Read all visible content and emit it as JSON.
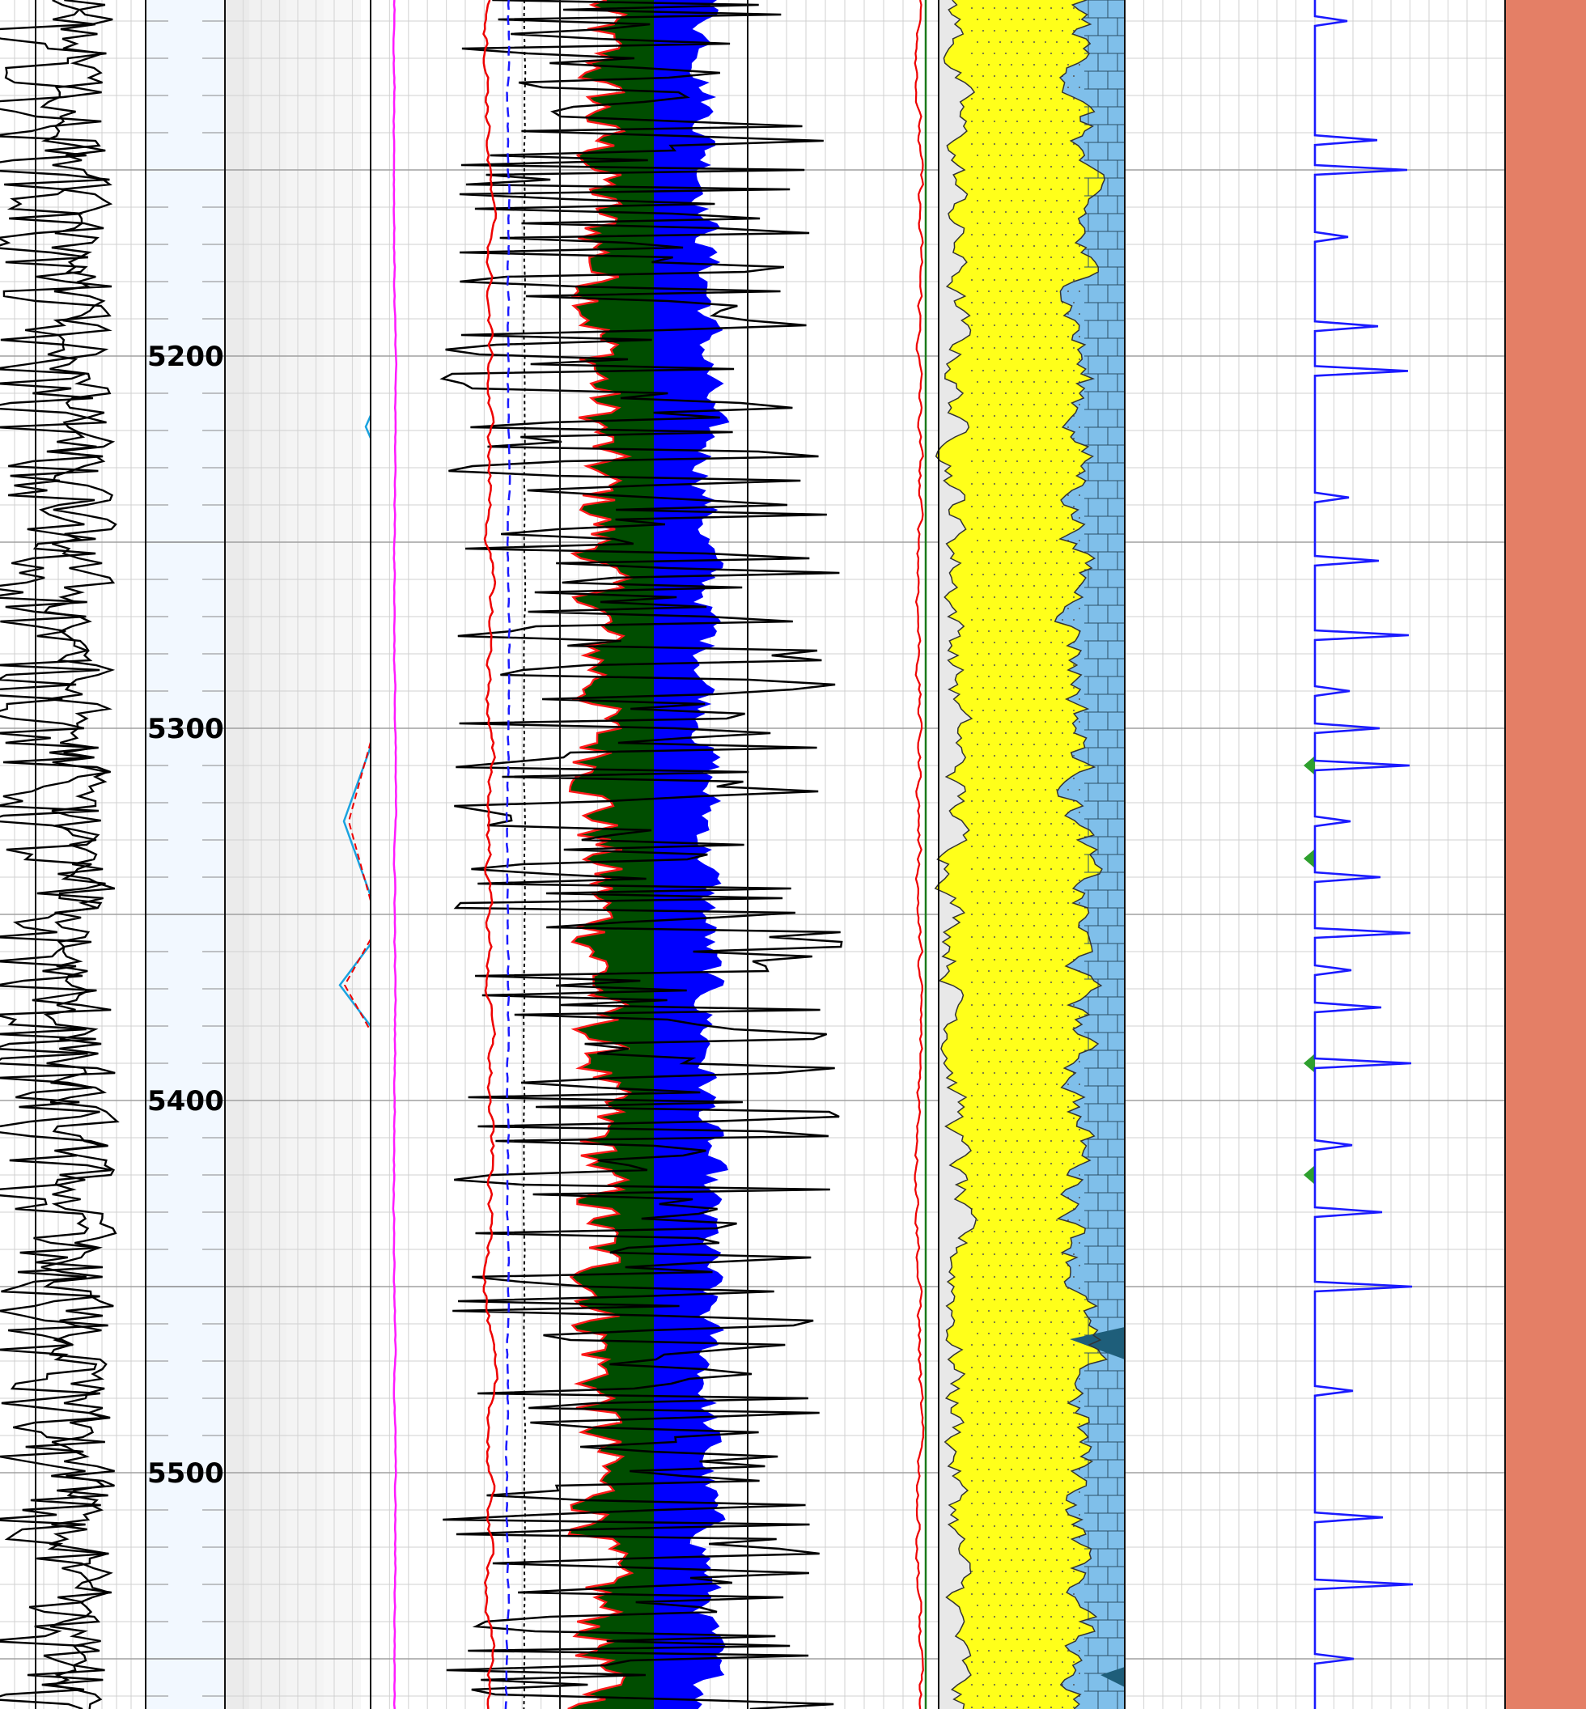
{
  "chart_data": {
    "type": "line",
    "depth_axis": {
      "range": [
        5100,
        5560
      ],
      "tick_labels": [
        "5200",
        "5300",
        "5400",
        "5500"
      ]
    },
    "tracks": [
      {
        "id": "gamma",
        "curves": [
          "black",
          "black"
        ]
      },
      {
        "id": "depth"
      },
      {
        "id": "shading",
        "curves": [
          "magenta",
          "red-dashed",
          "cyan"
        ]
      },
      {
        "id": "resistivity",
        "curves": [
          "red",
          "blue-dashed",
          "black-dotted"
        ]
      },
      {
        "id": "porosity",
        "fills": [
          "#004d00",
          "#0000ff"
        ],
        "curves": [
          "red",
          "black"
        ]
      },
      {
        "id": "lithology",
        "fills": [
          "#ffff00",
          "#7fbfea",
          "#1e5e7a"
        ],
        "curves": [
          "red",
          "green"
        ]
      },
      {
        "id": "spikes",
        "curves": [
          "blue"
        ],
        "fills": [
          "#2ea02e"
        ],
        "spike_depths": [
          5110,
          5142,
          5150,
          5168,
          5192,
          5204,
          5238,
          5255,
          5275,
          5290,
          5300,
          5310,
          5325,
          5340,
          5355,
          5365,
          5375,
          5390,
          5412,
          5430,
          5450,
          5478,
          5512,
          5530,
          5550
        ]
      },
      {
        "id": "color-band",
        "fills": [
          "#e47f66"
        ]
      }
    ],
    "colors": {
      "track_background": "#ffffff",
      "grid": "#cccccc",
      "depth_track_background": "#f2f8ff",
      "band": "#e47f66"
    }
  }
}
